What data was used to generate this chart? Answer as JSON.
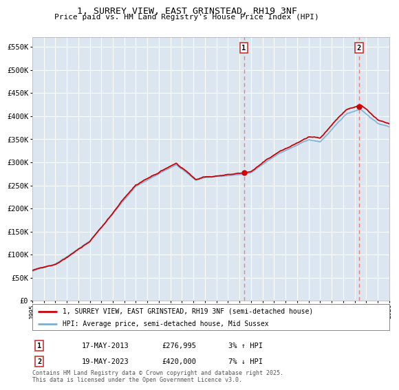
{
  "title": "1, SURREY VIEW, EAST GRINSTEAD, RH19 3NF",
  "subtitle": "Price paid vs. HM Land Registry's House Price Index (HPI)",
  "ytick_values": [
    0,
    50000,
    100000,
    150000,
    200000,
    250000,
    300000,
    350000,
    400000,
    450000,
    500000,
    550000
  ],
  "x_start_year": 1995,
  "x_end_year": 2026,
  "sale1_year": 2013.38,
  "sale1_price": 276995,
  "sale1_label": "1",
  "sale1_date": "17-MAY-2013",
  "sale1_hpi_pct": "3% ↑ HPI",
  "sale2_year": 2023.38,
  "sale2_price": 420000,
  "sale2_label": "2",
  "sale2_date": "19-MAY-2023",
  "sale2_hpi_pct": "7% ↓ HPI",
  "legend_line1": "1, SURREY VIEW, EAST GRINSTEAD, RH19 3NF (semi-detached house)",
  "legend_line2": "HPI: Average price, semi-detached house, Mid Sussex",
  "footer": "Contains HM Land Registry data © Crown copyright and database right 2025.\nThis data is licensed under the Open Government Licence v3.0.",
  "price_line_color": "#cc0000",
  "hpi_line_color": "#7bafd4",
  "dashed_line_color": "#e88080",
  "plot_bg_color": "#dce6f1",
  "grid_color": "#ffffff",
  "box_color": "#cc3333"
}
